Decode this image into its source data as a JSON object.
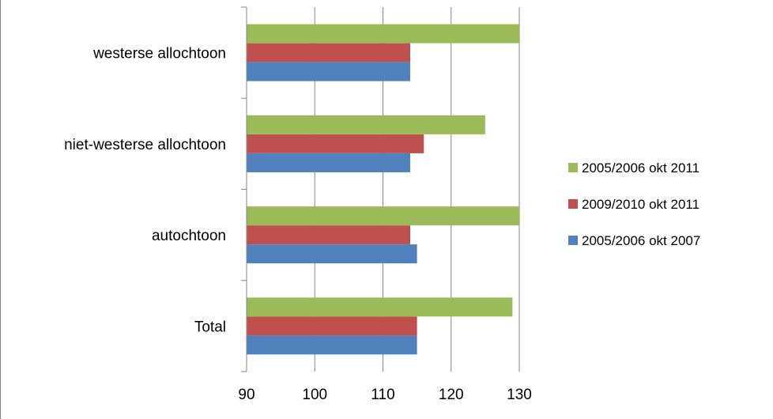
{
  "chart_data": {
    "type": "bar",
    "orientation": "horizontal",
    "categories": [
      "Total",
      "autochtoon",
      "niet-westerse allochtoon",
      "westerse allochtoon"
    ],
    "series": [
      {
        "name": "2005/2006 okt 2007",
        "color": "#4F81BD",
        "values": [
          115,
          115,
          114,
          114
        ]
      },
      {
        "name": "2009/2010 okt 2011",
        "color": "#C0504D",
        "values": [
          115,
          114,
          116,
          114
        ]
      },
      {
        "name": "2005/2006 okt 2011",
        "color": "#9BBB59",
        "values": [
          129,
          130,
          125,
          130
        ]
      }
    ],
    "xlim": [
      90,
      130
    ],
    "xticks": [
      90,
      100,
      110,
      120,
      130
    ],
    "grid": true,
    "legend_position": "right",
    "legend_order": [
      "2005/2006 okt 2011",
      "2009/2010 okt 2011",
      "2005/2006 okt 2007"
    ]
  }
}
